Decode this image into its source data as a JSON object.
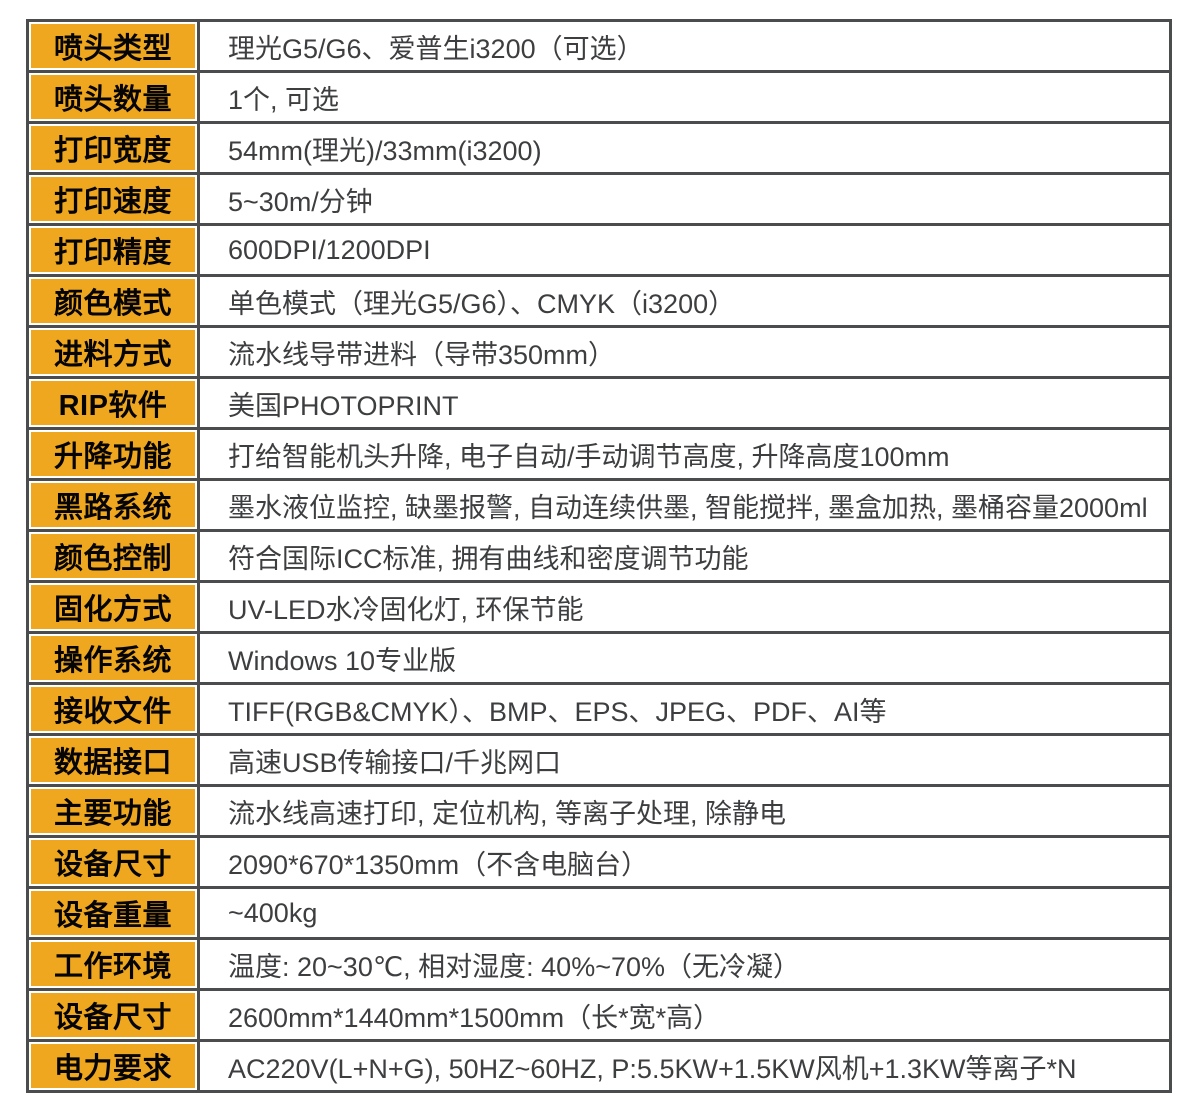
{
  "table": {
    "name": "printer-specification-table",
    "accent_color": "#efa71f",
    "border_color": "#4b4c4e",
    "label_text_color": "#050505",
    "value_text_color": "#3d3e40",
    "rows": [
      {
        "label": "喷头类型",
        "value": "理光G5/G6、爱普生i3200（可选）"
      },
      {
        "label": "喷头数量",
        "value": "1个, 可选"
      },
      {
        "label": "打印宽度",
        "value": "54mm(理光)/33mm(i3200)"
      },
      {
        "label": "打印速度",
        "value": "5~30m/分钟"
      },
      {
        "label": "打印精度",
        "value": "600DPI/1200DPI"
      },
      {
        "label": "颜色模式",
        "value": "单色模式（理光G5/G6）、CMYK（i3200）"
      },
      {
        "label": "进料方式",
        "value": "流水线导带进料（导带350mm）"
      },
      {
        "label": "RIP软件",
        "value": "美国PHOTOPRINT"
      },
      {
        "label": "升降功能",
        "value": "打给智能机头升降, 电子自动/手动调节高度, 升降高度100mm"
      },
      {
        "label": "黑路系统",
        "value": "墨水液位监控, 缺墨报警, 自动连续供墨, 智能搅拌, 墨盒加热, 墨桶容量2000ml"
      },
      {
        "label": "颜色控制",
        "value": "符合国际ICC标准, 拥有曲线和密度调节功能"
      },
      {
        "label": "固化方式",
        "value": "UV-LED水冷固化灯, 环保节能"
      },
      {
        "label": "操作系统",
        "value": "Windows 10专业版"
      },
      {
        "label": "接收文件",
        "value": "TIFF(RGB&CMYK）、BMP、EPS、JPEG、PDF、AI等"
      },
      {
        "label": "数据接口",
        "value": "高速USB传输接口/千兆网口"
      },
      {
        "label": "主要功能",
        "value": "流水线高速打印, 定位机构, 等离子处理, 除静电"
      },
      {
        "label": "设备尺寸",
        "value": "2090*670*1350mm（不含电脑台）"
      },
      {
        "label": "设备重量",
        "value": "~400kg"
      },
      {
        "label": "工作环境",
        "value": "温度: 20~30℃, 相对湿度: 40%~70%（无冷凝）"
      },
      {
        "label": "设备尺寸",
        "value": "2600mm*1440mm*1500mm（长*宽*高）"
      },
      {
        "label": "电力要求",
        "value": "AC220V(L+N+G), 50HZ~60HZ, P:5.5KW+1.5KW风机+1.3KW等离子*N"
      }
    ]
  }
}
